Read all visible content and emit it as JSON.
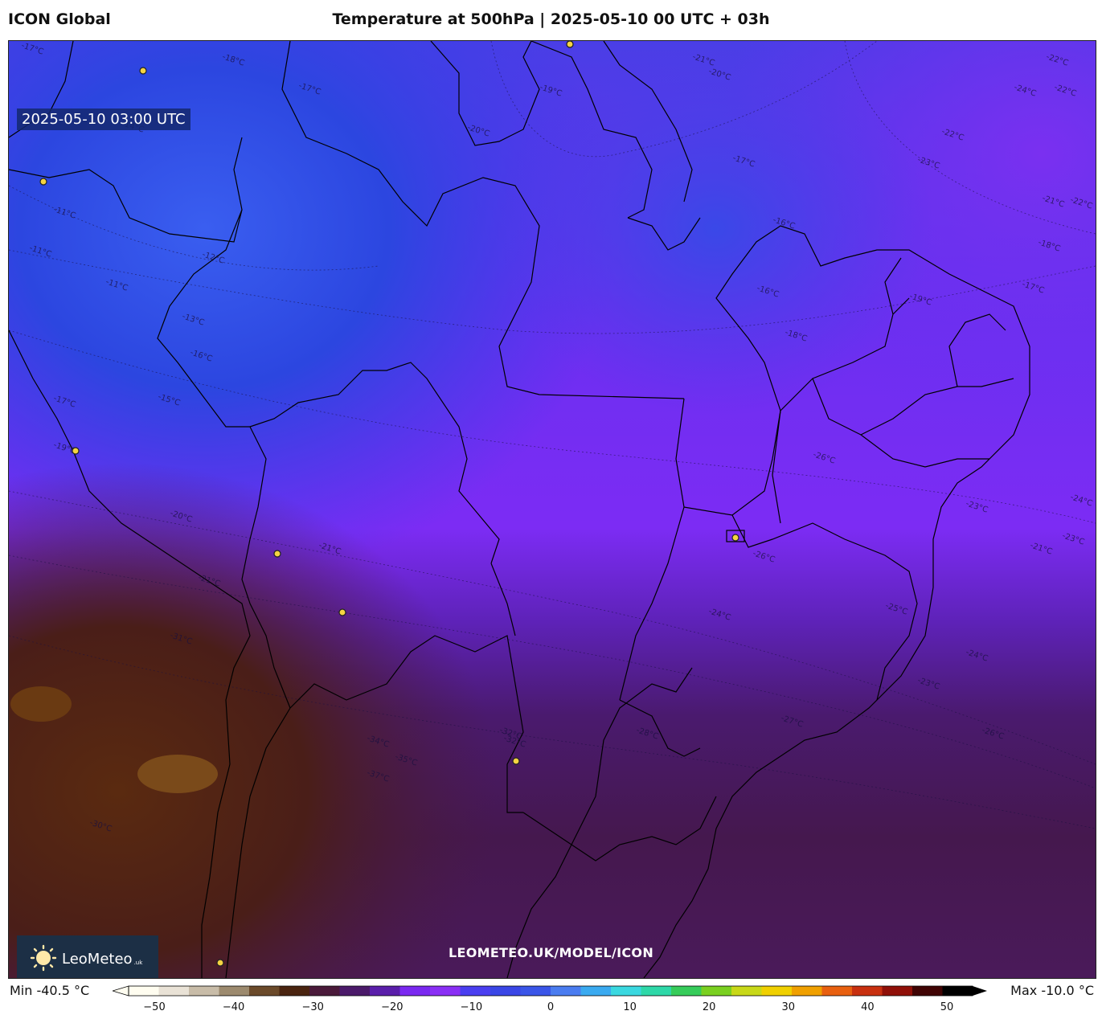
{
  "header": {
    "model": "ICON Global",
    "title": "Temperature at 500hPa | 2025-05-10 00 UTC + 03h"
  },
  "map": {
    "valid_time": "2025-05-10 03:00 UTC",
    "watermark_url": "LEOMETEO.UK/MODEL/ICON",
    "logo": {
      "name": "LeoMeteo",
      "suffix": ".uk"
    },
    "contour_labels": [
      "-17°C",
      "-18°C",
      "-17°C",
      "-14°C",
      "-11°C",
      "-11°C",
      "-11°C",
      "-12°C",
      "-13°C",
      "-16°C",
      "-15°C",
      "-17°C",
      "-19°C",
      "-20°C",
      "-21°C",
      "-21°C",
      "-20°C",
      "-19°C",
      "-21°C",
      "-20°C",
      "-17°C",
      "-16°C",
      "-16°C",
      "-18°C",
      "-19°C",
      "-22°C",
      "-22°C",
      "-24°C",
      "-22°C",
      "-21°C",
      "-18°C",
      "-17°C",
      "-23°C",
      "-22°C",
      "-26°C",
      "-26°C",
      "-24°C",
      "-23°C",
      "-21°C",
      "-23°C",
      "-24°C",
      "-25°C",
      "-24°C",
      "-23°C",
      "-26°C",
      "-27°C",
      "-28°C",
      "-31°C",
      "-32°C",
      "-34°C",
      "-35°C",
      "-37°C",
      "-32°C",
      "-30°C",
      "-29°C",
      "-28°C"
    ]
  },
  "colorbar": {
    "min_label": "Min -40.5 °C",
    "max_label": "Max -10.0 °C",
    "ticks": [
      "−50",
      "−40",
      "−30",
      "−20",
      "−10",
      "0",
      "10",
      "20",
      "30",
      "40",
      "50"
    ],
    "colors": [
      "#fffdf0",
      "#e9e2d6",
      "#c8bca8",
      "#9c8a6e",
      "#6b4a2a",
      "#4a2410",
      "#4a1a3a",
      "#4b1a6a",
      "#5a1eaa",
      "#7a28f0",
      "#8a2ff5",
      "#4a3ef0",
      "#3a46e6",
      "#3a55e8",
      "#4a7cf0",
      "#3aaaf0",
      "#3ad8e0",
      "#2ed8a8",
      "#36cc5a",
      "#7ad020",
      "#c8d818",
      "#f0d000",
      "#f0a000",
      "#e86010",
      "#c83010",
      "#901008",
      "#400404",
      "#000000"
    ]
  },
  "cities": [
    "c1",
    "c2",
    "c3",
    "c4",
    "c5",
    "c6",
    "c7",
    "c8",
    "c9",
    "c10"
  ]
}
